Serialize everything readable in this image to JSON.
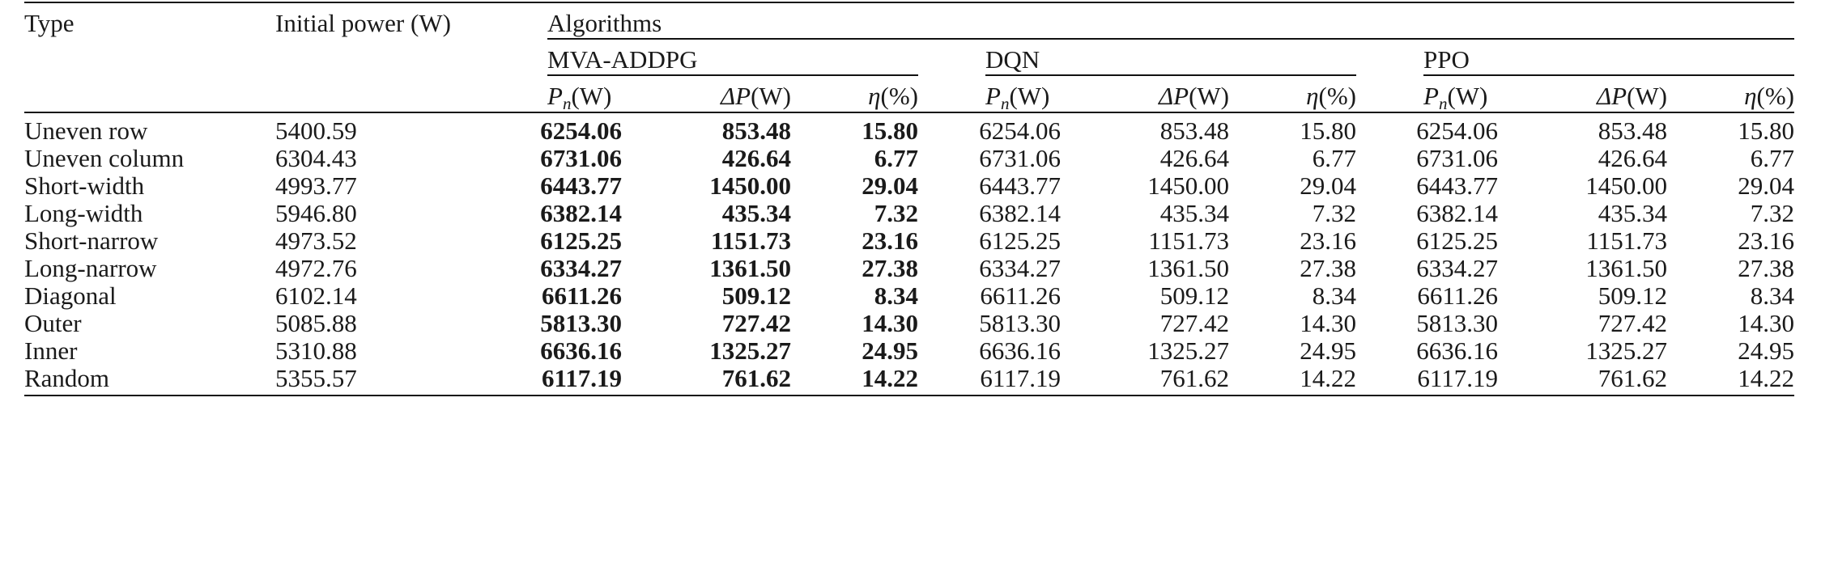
{
  "header": {
    "type": "Type",
    "initial_power": "Initial power (W)",
    "algorithms": "Algorithms",
    "groups": [
      "MVA-ADDPG",
      "DQN",
      "PPO"
    ],
    "subcols": [
      {
        "sym": "P",
        "sub": "n",
        "unit": "(W)"
      },
      {
        "sym": "ΔP",
        "sub": "",
        "unit": "(W)"
      },
      {
        "sym": "η",
        "sub": "",
        "unit": "(%)"
      }
    ]
  },
  "rows": [
    {
      "type": "Uneven row",
      "initial": "5400.59",
      "values": [
        "6254.06",
        "853.48",
        "15.80"
      ]
    },
    {
      "type": "Uneven column",
      "initial": "6304.43",
      "values": [
        "6731.06",
        "426.64",
        "6.77"
      ]
    },
    {
      "type": "Short-width",
      "initial": "4993.77",
      "values": [
        "6443.77",
        "1450.00",
        "29.04"
      ]
    },
    {
      "type": "Long-width",
      "initial": "5946.80",
      "values": [
        "6382.14",
        "435.34",
        "7.32"
      ]
    },
    {
      "type": "Short-narrow",
      "initial": "4973.52",
      "values": [
        "6125.25",
        "1151.73",
        "23.16"
      ]
    },
    {
      "type": "Long-narrow",
      "initial": "4972.76",
      "values": [
        "6334.27",
        "1361.50",
        "27.38"
      ]
    },
    {
      "type": "Diagonal",
      "initial": "6102.14",
      "values": [
        "6611.26",
        "509.12",
        "8.34"
      ]
    },
    {
      "type": "Outer",
      "initial": "5085.88",
      "values": [
        "5813.30",
        "727.42",
        "14.30"
      ]
    },
    {
      "type": "Inner",
      "initial": "5310.88",
      "values": [
        "6636.16",
        "1325.27",
        "24.95"
      ]
    },
    {
      "type": "Random",
      "initial": "5355.57",
      "values": [
        "6117.19",
        "761.62",
        "14.22"
      ]
    }
  ]
}
